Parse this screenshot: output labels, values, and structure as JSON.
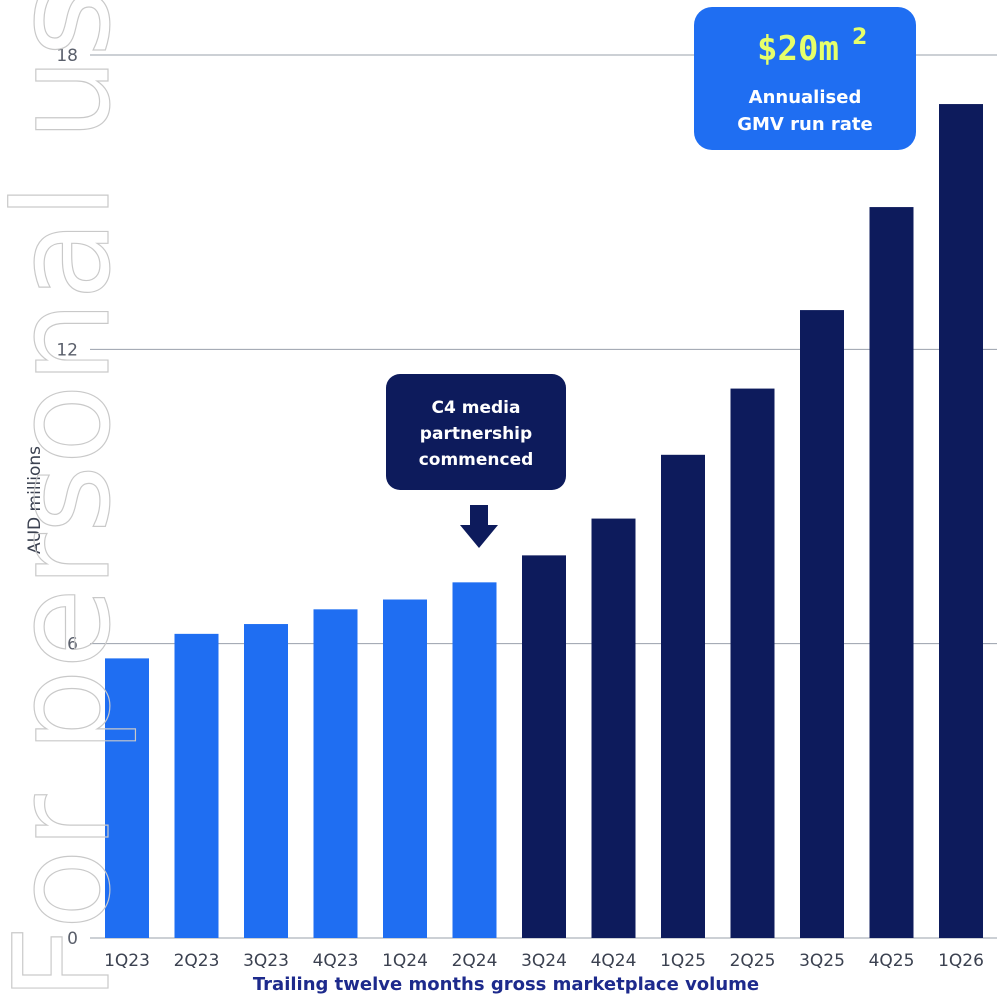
{
  "watermark_text": "For personal use only",
  "chart_data": {
    "type": "bar",
    "categories": [
      "1Q23",
      "2Q23",
      "3Q23",
      "4Q23",
      "1Q24",
      "2Q24",
      "3Q24",
      "4Q24",
      "1Q25",
      "2Q25",
      "3Q25",
      "4Q25",
      "1Q26"
    ],
    "values": [
      5.7,
      6.2,
      6.4,
      6.7,
      6.9,
      7.25,
      7.8,
      8.55,
      9.85,
      11.2,
      12.8,
      14.9,
      17.0
    ],
    "ylabel": "AUD millions",
    "xlabel": "Trailing twelve months gross marketplace volume",
    "ylim": [
      0,
      18
    ],
    "yticks": [
      "0",
      "6",
      "12",
      "18"
    ],
    "grid": true,
    "colors": {
      "early": "#1f6ef2",
      "later": "#0d1b5c"
    },
    "annotations": {
      "partnership": {
        "lines": [
          "C4 media",
          "partnership",
          "commenced"
        ],
        "points_to": "2Q24"
      },
      "highlight": {
        "value": "$20m",
        "superscript": "2",
        "lines": [
          "Annualised",
          "GMV run rate"
        ]
      }
    }
  }
}
